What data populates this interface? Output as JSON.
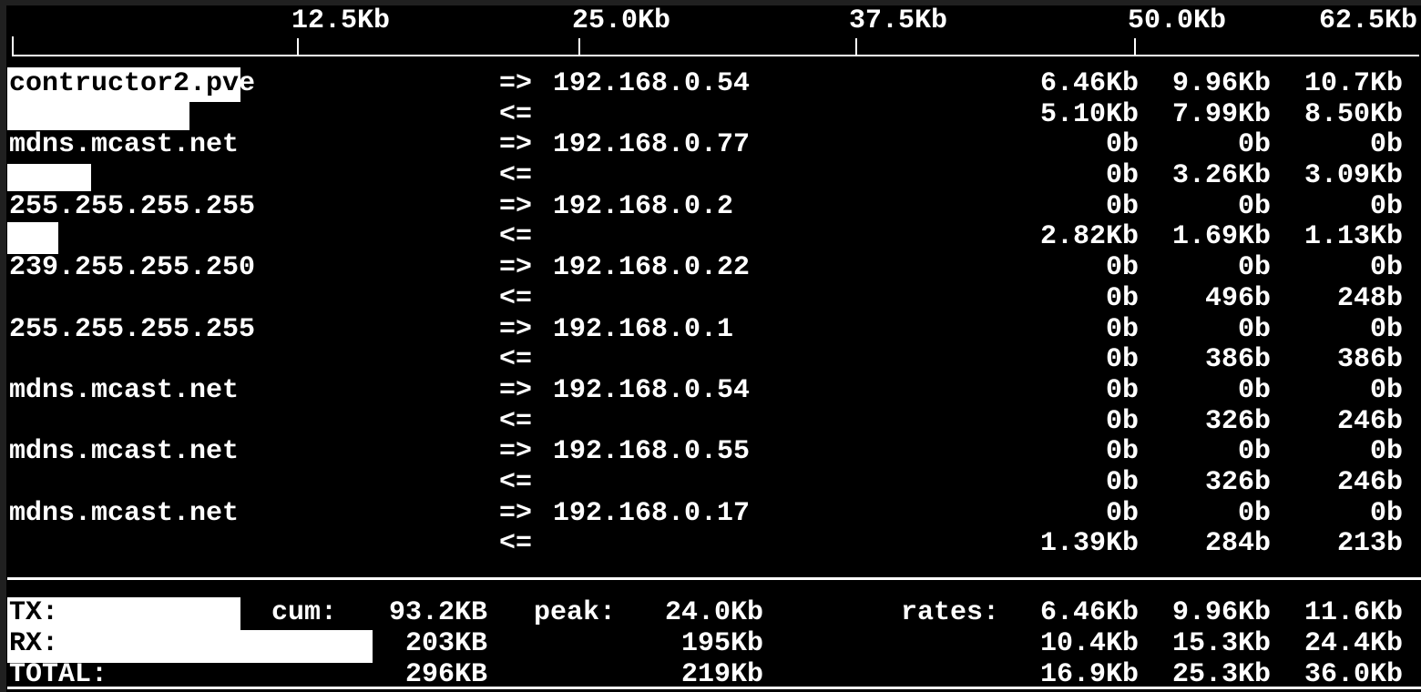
{
  "app": "iftop-bandwidth-monitor",
  "colors": {
    "background": "#000000",
    "text": "#ffffff",
    "redaction_box": "#ffffff",
    "inverse_text": "#000000"
  },
  "scale": {
    "labels": [
      "12.5Kb",
      "25.0Kb",
      "37.5Kb",
      "50.0Kb",
      "62.5Kb"
    ]
  },
  "arrows": {
    "out": "=>",
    "in": "<="
  },
  "connections": [
    {
      "src": "contructor2.pve",
      "src_highlight": "contructor2.pv",
      "src_rest": "e",
      "dst": "192.168.0.54",
      "out": [
        "6.46Kb",
        "9.96Kb",
        "10.7Kb"
      ],
      "in": [
        "5.10Kb",
        "7.99Kb",
        "8.50Kb"
      ]
    },
    {
      "src": "mdns.mcast.net",
      "dst": "192.168.0.77",
      "out": [
        "0b",
        "0b",
        "0b"
      ],
      "in": [
        "0b",
        "3.26Kb",
        "3.09Kb"
      ]
    },
    {
      "src": "255.255.255.255",
      "dst": "192.168.0.2",
      "out": [
        "0b",
        "0b",
        "0b"
      ],
      "in": [
        "2.82Kb",
        "1.69Kb",
        "1.13Kb"
      ]
    },
    {
      "src": "239.255.255.250",
      "dst": "192.168.0.22",
      "out": [
        "0b",
        "0b",
        "0b"
      ],
      "in": [
        "0b",
        "496b",
        "248b"
      ]
    },
    {
      "src": "255.255.255.255",
      "dst": "192.168.0.1",
      "out": [
        "0b",
        "0b",
        "0b"
      ],
      "in": [
        "0b",
        "386b",
        "386b"
      ]
    },
    {
      "src": "mdns.mcast.net",
      "dst": "192.168.0.54",
      "out": [
        "0b",
        "0b",
        "0b"
      ],
      "in": [
        "0b",
        "326b",
        "246b"
      ]
    },
    {
      "src": "mdns.mcast.net",
      "dst": "192.168.0.55",
      "out": [
        "0b",
        "0b",
        "0b"
      ],
      "in": [
        "0b",
        "326b",
        "246b"
      ]
    },
    {
      "src": "mdns.mcast.net",
      "dst": "192.168.0.17",
      "out": [
        "0b",
        "0b",
        "0b"
      ],
      "in": [
        "1.39Kb",
        "284b",
        "213b"
      ]
    }
  ],
  "summary": {
    "cum_label": "cum:",
    "peak_label": "peak:",
    "rates_label": "rates:",
    "tx": {
      "label": "TX:",
      "cum": "93.2KB",
      "peak": "24.0Kb",
      "rates": [
        "6.46Kb",
        "9.96Kb",
        "11.6Kb"
      ]
    },
    "rx": {
      "label": "RX:",
      "cum": "203KB",
      "peak": "195Kb",
      "rates": [
        "10.4Kb",
        "15.3Kb",
        "24.4Kb"
      ]
    },
    "total": {
      "label": "TOTAL:",
      "cum": "296KB",
      "peak": "219Kb",
      "rates": [
        "16.9Kb",
        "25.3Kb",
        "36.0Kb"
      ]
    }
  }
}
